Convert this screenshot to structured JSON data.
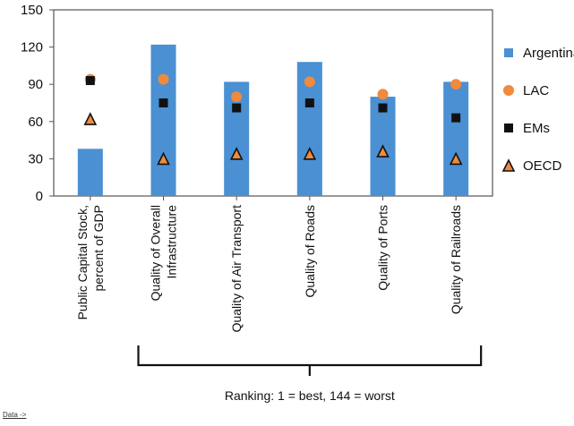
{
  "chart_data": {
    "type": "bar",
    "categories": [
      "Public Capital Stock, percent of GDP",
      "Quality of Overall Infrastructure",
      "Quality of Air Transport",
      "Quality of Roads",
      "Quality of Ports",
      "Quality of Railroads"
    ],
    "category_label_lines": [
      [
        "Public Capital Stock,",
        "percent of GDP"
      ],
      [
        "Quality of Overall",
        "Infrastructure"
      ],
      [
        "Quality of Air Transport"
      ],
      [
        "Quality of Roads"
      ],
      [
        "Quality of Ports"
      ],
      [
        "Quality of Railroads"
      ]
    ],
    "series": [
      {
        "name": "Argentina",
        "type": "bar",
        "marker": "square",
        "color": "#4a90d2",
        "values": [
          38,
          122,
          92,
          108,
          80,
          92
        ]
      },
      {
        "name": "LAC",
        "type": "scatter",
        "marker": "circle",
        "color": "#f08a3c",
        "values": [
          94,
          94,
          80,
          92,
          82,
          90
        ]
      },
      {
        "name": "EMs",
        "type": "scatter",
        "marker": "square",
        "color": "#111111",
        "values": [
          93,
          75,
          71,
          75,
          71,
          63
        ]
      },
      {
        "name": "OECD",
        "type": "scatter",
        "marker": "triangle",
        "color": "#f08a3c",
        "values": [
          62,
          30,
          34,
          34,
          36,
          30
        ]
      }
    ],
    "ylim": [
      0,
      150
    ],
    "yticks": [
      0,
      30,
      60,
      90,
      120,
      150
    ],
    "grid": false,
    "legend_position": "right",
    "annotation": "Ranking: 1 = best, 144 = worst",
    "annotation_bracket_categories": [
      1,
      5
    ]
  },
  "footer": {
    "data_link": "Data ->"
  }
}
